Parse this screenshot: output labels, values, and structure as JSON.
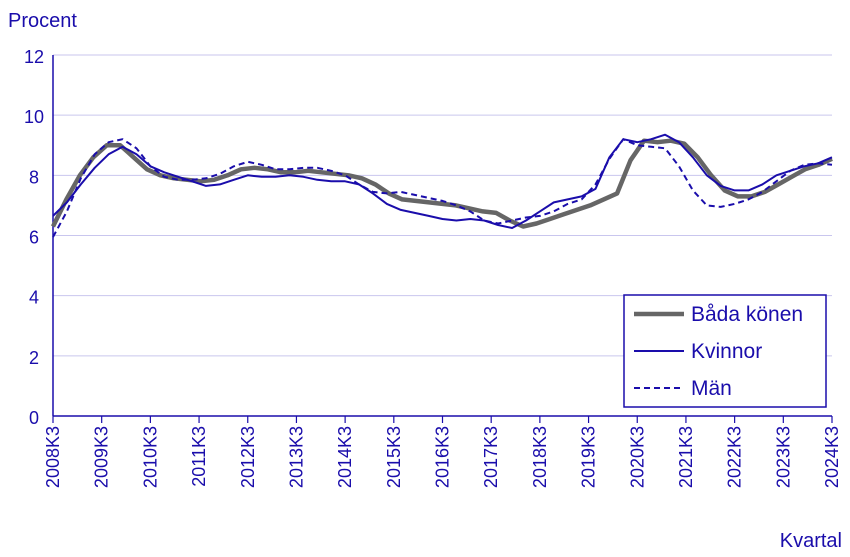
{
  "chart_data": {
    "type": "line",
    "ylabel": "Procent",
    "xlabel": "Kvartal",
    "ylim": [
      0,
      12
    ],
    "yticks": [
      "0",
      "2",
      "4",
      "6",
      "8",
      "10",
      "12"
    ],
    "x_labels": [
      "2008K3",
      "2009K3",
      "2010K3",
      "2011K3",
      "2012K3",
      "2013K3",
      "2014K3",
      "2015K3",
      "2016K3",
      "2017K3",
      "2018K3",
      "2019K3",
      "2020K3",
      "2021K3",
      "2022K3",
      "2023K3",
      "2024K3"
    ],
    "grid": "horizontal",
    "legend_position": "bottom-right",
    "series": [
      {
        "name": "Båda könen",
        "color": "#666666",
        "style": "thick-solid",
        "values": [
          6.3,
          7.2,
          8.0,
          8.6,
          9.0,
          9.0,
          8.6,
          8.2,
          8.0,
          7.9,
          7.85,
          7.8,
          7.85,
          8.0,
          8.2,
          8.25,
          8.2,
          8.1,
          8.1,
          8.15,
          8.1,
          8.05,
          8.0,
          7.9,
          7.7,
          7.4,
          7.2,
          7.15,
          7.1,
          7.05,
          7.0,
          6.9,
          6.8,
          6.75,
          6.5,
          6.3,
          6.4,
          6.55,
          6.7,
          6.85,
          7.0,
          7.2,
          7.4,
          8.5,
          9.15,
          9.1,
          9.15,
          9.05,
          8.6,
          8.0,
          7.5,
          7.3,
          7.3,
          7.45,
          7.7,
          7.95,
          8.2,
          8.35,
          8.55
        ]
      },
      {
        "name": "Kvinnor",
        "color": "#1a0dab",
        "style": "solid",
        "values": [
          6.65,
          7.1,
          7.7,
          8.25,
          8.7,
          8.95,
          8.7,
          8.3,
          8.1,
          7.95,
          7.8,
          7.65,
          7.7,
          7.85,
          8.0,
          7.95,
          7.95,
          8.0,
          7.95,
          7.85,
          7.8,
          7.8,
          7.7,
          7.4,
          7.05,
          6.85,
          6.75,
          6.65,
          6.55,
          6.5,
          6.55,
          6.5,
          6.35,
          6.25,
          6.5,
          6.8,
          7.1,
          7.2,
          7.3,
          7.55,
          8.6,
          9.2,
          9.1,
          9.2,
          9.35,
          9.1,
          8.6,
          8.0,
          7.65,
          7.5,
          7.5,
          7.7,
          8.0,
          8.15,
          8.3,
          8.4,
          8.6
        ]
      },
      {
        "name": "Män",
        "color": "#1a0dab",
        "style": "dashed",
        "values": [
          5.95,
          6.8,
          7.9,
          8.7,
          9.1,
          9.2,
          8.9,
          8.3,
          7.95,
          7.85,
          7.85,
          7.9,
          8.05,
          8.3,
          8.45,
          8.35,
          8.2,
          8.2,
          8.25,
          8.25,
          8.15,
          8.0,
          7.7,
          7.45,
          7.4,
          7.45,
          7.35,
          7.25,
          7.15,
          7.0,
          6.8,
          6.5,
          6.4,
          6.5,
          6.6,
          6.65,
          6.8,
          7.05,
          7.2,
          7.7,
          8.55,
          9.2,
          9.0,
          8.95,
          8.9,
          8.3,
          7.5,
          7.0,
          6.95,
          7.05,
          7.2,
          7.45,
          7.8,
          8.15,
          8.35,
          8.4,
          8.35
        ]
      }
    ]
  }
}
